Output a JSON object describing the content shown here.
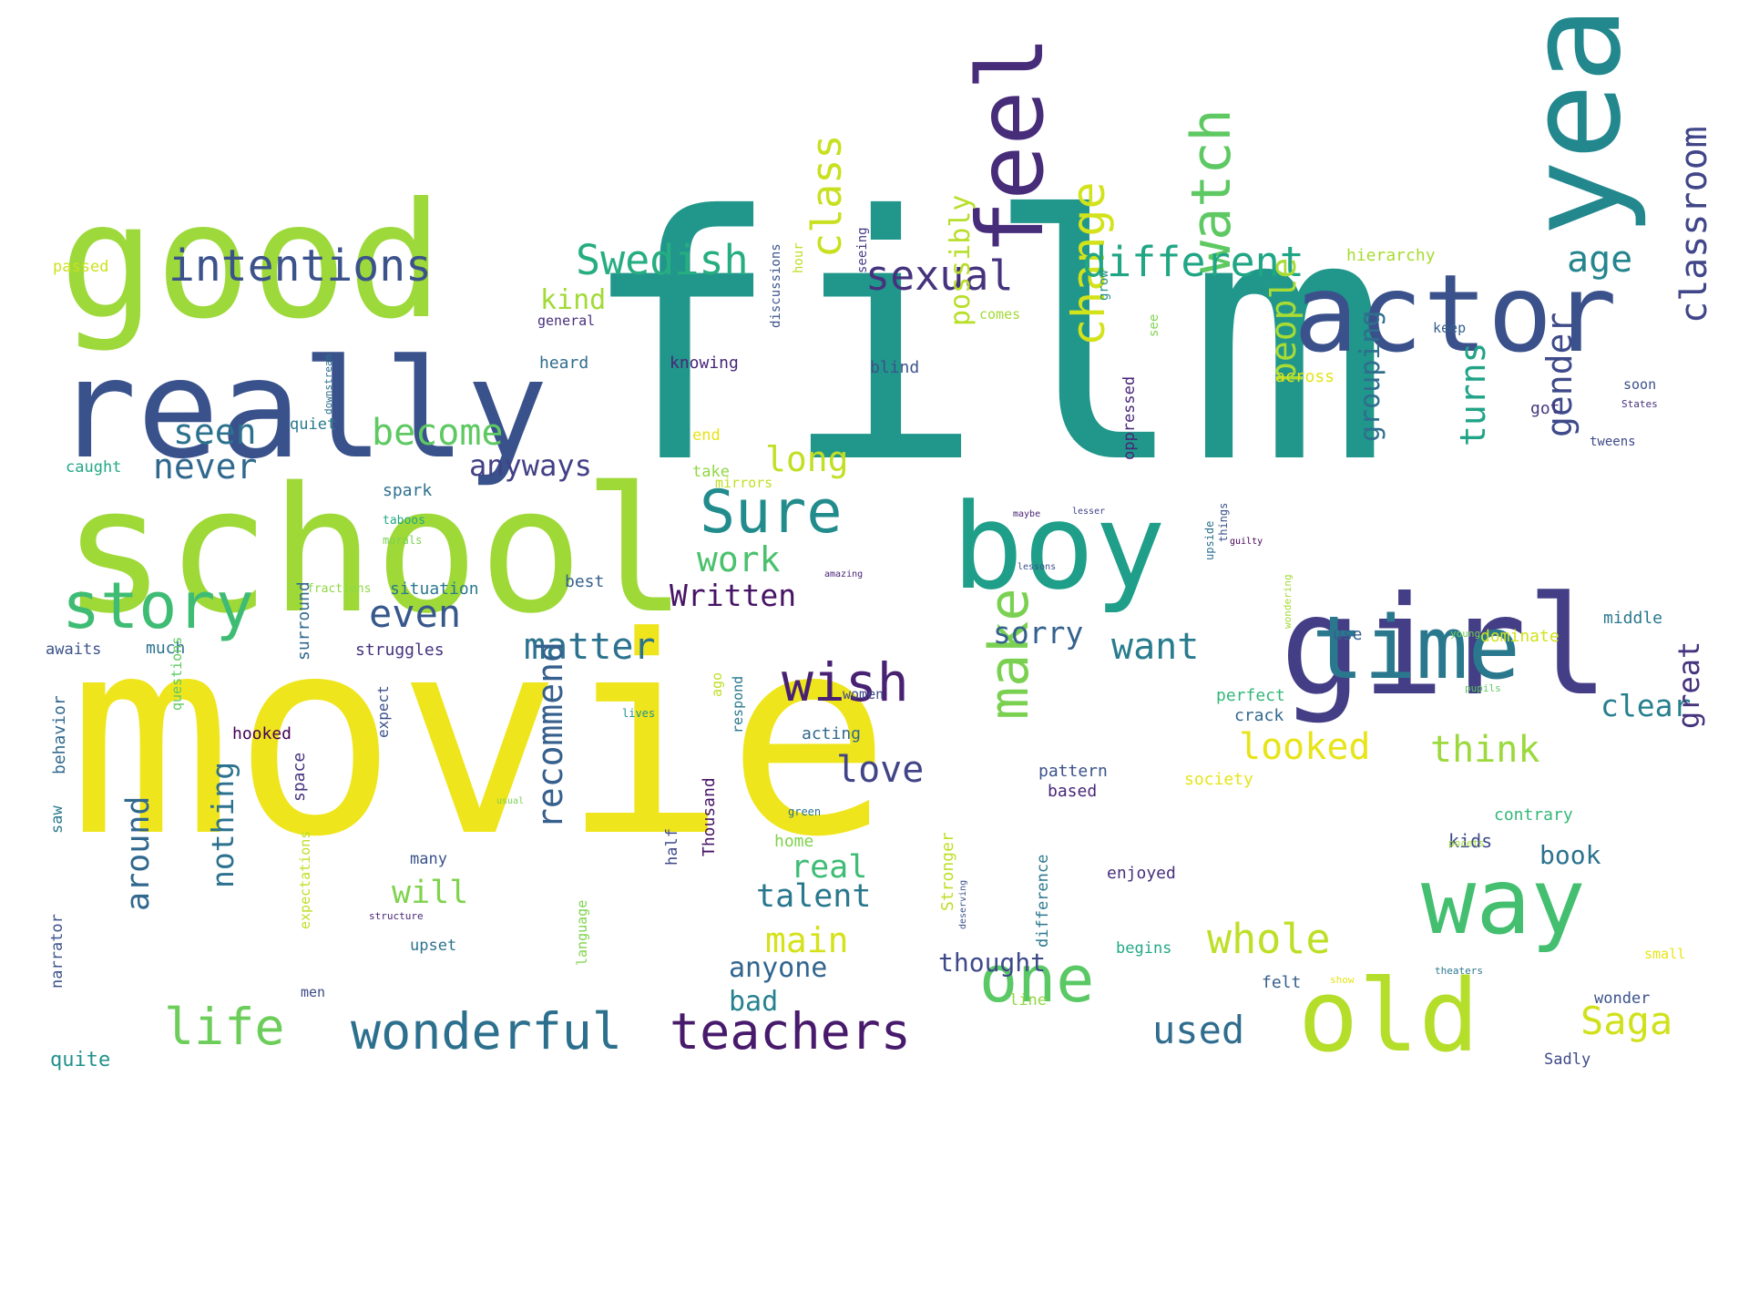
{
  "wordcloud": {
    "words": [
      {
        "text": "film",
        "weight": 100,
        "color": "#21968b",
        "rot": 0
      },
      {
        "text": "movie",
        "weight": 90,
        "color": "#efe51c",
        "rot": 0
      },
      {
        "text": "school",
        "weight": 70,
        "color": "#9fd938",
        "rot": 0
      },
      {
        "text": "good",
        "weight": 62,
        "color": "#9dd93b",
        "rot": 0
      },
      {
        "text": "really",
        "weight": 58,
        "color": "#3a528b",
        "rot": 0
      },
      {
        "text": "boy",
        "weight": 45,
        "color": "#1f9e89",
        "rot": 0
      },
      {
        "text": "girl",
        "weight": 50,
        "color": "#433e85",
        "rot": 0
      },
      {
        "text": "actor",
        "weight": 38,
        "color": "#3b518b",
        "rot": 0
      },
      {
        "text": "year",
        "weight": 42,
        "color": "#23888e",
        "rot": 90
      },
      {
        "text": "time",
        "weight": 36,
        "color": "#2a788e",
        "rot": 0
      },
      {
        "text": "feel",
        "weight": 30,
        "color": "#472c7a",
        "rot": 90
      },
      {
        "text": "way",
        "weight": 36,
        "color": "#44bf70",
        "rot": 0
      },
      {
        "text": "old",
        "weight": 38,
        "color": "#b5de2b",
        "rot": 0
      },
      {
        "text": "story",
        "weight": 22,
        "color": "#3fbc73",
        "rot": 0
      },
      {
        "text": "one",
        "weight": 22,
        "color": "#5ac864",
        "rot": 0
      },
      {
        "text": "wish",
        "weight": 18,
        "color": "#482173",
        "rot": 0
      },
      {
        "text": "make",
        "weight": 20,
        "color": "#7ad151",
        "rot": 90
      },
      {
        "text": "watch",
        "weight": 20,
        "color": "#5ec962",
        "rot": 90
      },
      {
        "text": "Sure",
        "weight": 20,
        "color": "#228c8d",
        "rot": 0
      },
      {
        "text": "teachers",
        "weight": 17,
        "color": "#481a6c",
        "rot": 0
      },
      {
        "text": "life",
        "weight": 16,
        "color": "#6ccd5a",
        "rot": 0
      },
      {
        "text": "wonderful",
        "weight": 17,
        "color": "#2d708e",
        "rot": 0
      },
      {
        "text": "change",
        "weight": 16,
        "color": "#d2e21b",
        "rot": 90
      },
      {
        "text": "intentions",
        "weight": 14,
        "color": "#3b528b",
        "rot": 0
      },
      {
        "text": "Swedish",
        "weight": 12,
        "color": "#26ad81",
        "rot": 0
      },
      {
        "text": "different",
        "weight": 12,
        "color": "#21a685",
        "rot": 0
      },
      {
        "text": "sexual",
        "weight": 12,
        "color": "#46337e",
        "rot": 0
      },
      {
        "text": "age",
        "weight": 10,
        "color": "#25858e",
        "rot": 0
      },
      {
        "text": "class",
        "weight": 12,
        "color": "#c8e020",
        "rot": 90
      },
      {
        "text": "classroom",
        "weight": 10,
        "color": "#404688",
        "rot": 90
      },
      {
        "text": "become",
        "weight": 10,
        "color": "#5ec962",
        "rot": 0
      },
      {
        "text": "seen",
        "weight": 10,
        "color": "#2c728e",
        "rot": 0
      },
      {
        "text": "never",
        "weight": 10,
        "color": "#31688e",
        "rot": 0
      },
      {
        "text": "anyways",
        "weight": 8,
        "color": "#424086",
        "rot": 0
      },
      {
        "text": "long",
        "weight": 10,
        "color": "#c2df23",
        "rot": 0
      },
      {
        "text": "work",
        "weight": 10,
        "color": "#4ac16d",
        "rot": 0
      },
      {
        "text": "even",
        "weight": 11,
        "color": "#38588c",
        "rot": 0
      },
      {
        "text": "matter",
        "weight": 10,
        "color": "#2c728e",
        "rot": 0
      },
      {
        "text": "Written",
        "weight": 8,
        "color": "#471365",
        "rot": 0
      },
      {
        "text": "people",
        "weight": 10,
        "color": "#a8db34",
        "rot": 90
      },
      {
        "text": "turns",
        "weight": 10,
        "color": "#20a386",
        "rot": 90
      },
      {
        "text": "gender",
        "weight": 10,
        "color": "#3e4a89",
        "rot": 90
      },
      {
        "text": "grouping",
        "weight": 8,
        "color": "#2e6e8e",
        "rot": 90
      },
      {
        "text": "possibly",
        "weight": 8,
        "color": "#b8de29",
        "rot": 90
      },
      {
        "text": "sorry",
        "weight": 8,
        "color": "#34618d",
        "rot": 0
      },
      {
        "text": "want",
        "weight": 10,
        "color": "#287c8e",
        "rot": 0
      },
      {
        "text": "kind",
        "weight": 7,
        "color": "#a2da37",
        "rot": 0
      },
      {
        "text": "looked",
        "weight": 9,
        "color": "#e7e419",
        "rot": 0
      },
      {
        "text": "think",
        "weight": 9,
        "color": "#9bd93c",
        "rot": 0
      },
      {
        "text": "clear",
        "weight": 8,
        "color": "#277f8e",
        "rot": 0
      },
      {
        "text": "great",
        "weight": 8,
        "color": "#46337e",
        "rot": 90
      },
      {
        "text": "love",
        "weight": 10,
        "color": "#414487",
        "rot": 0
      },
      {
        "text": "whole",
        "weight": 10,
        "color": "#bddf26",
        "rot": 0
      },
      {
        "text": "recommend",
        "weight": 9,
        "color": "#355f8d",
        "rot": 90
      },
      {
        "text": "around",
        "weight": 8,
        "color": "#31688e",
        "rot": 90
      },
      {
        "text": "nothing",
        "weight": 8,
        "color": "#2c728e",
        "rot": 90
      },
      {
        "text": "will",
        "weight": 8,
        "color": "#7fd34e",
        "rot": 0
      },
      {
        "text": "real",
        "weight": 8,
        "color": "#3dbc74",
        "rot": 0
      },
      {
        "text": "talent",
        "weight": 8,
        "color": "#2a788e",
        "rot": 0
      },
      {
        "text": "main",
        "weight": 9,
        "color": "#d5e21a",
        "rot": 0
      },
      {
        "text": "anyone",
        "weight": 7,
        "color": "#32658e",
        "rot": 0
      },
      {
        "text": "bad",
        "weight": 7,
        "color": "#26818e",
        "rot": 0
      },
      {
        "text": "thought",
        "weight": 7,
        "color": "#3e4989",
        "rot": 0
      },
      {
        "text": "used",
        "weight": 9,
        "color": "#2f6c8e",
        "rot": 0
      },
      {
        "text": "Saga",
        "weight": 9,
        "color": "#d0e11c",
        "rot": 0
      },
      {
        "text": "book",
        "weight": 6,
        "color": "#2c728e",
        "rot": 0
      },
      {
        "text": "kids",
        "weight": 5,
        "color": "#3e4a89",
        "rot": 0
      },
      {
        "text": "passed",
        "weight": 4,
        "color": "#cde11d",
        "rot": 0
      },
      {
        "text": "hierarchy",
        "weight": 4,
        "color": "#a8db34",
        "rot": 0
      },
      {
        "text": "general",
        "weight": 3,
        "color": "#472f7d",
        "rot": 0
      },
      {
        "text": "heard",
        "weight": 4,
        "color": "#2e6d8e",
        "rot": 0
      },
      {
        "text": "knowing",
        "weight": 4,
        "color": "#482677",
        "rot": 0
      },
      {
        "text": "blind",
        "weight": 4,
        "color": "#3b528b",
        "rot": 0
      },
      {
        "text": "comes",
        "weight": 3,
        "color": "#a2da37",
        "rot": 0
      },
      {
        "text": "keep",
        "weight": 3,
        "color": "#355f8d",
        "rot": 0
      },
      {
        "text": "across",
        "weight": 4,
        "color": "#e2e418",
        "rot": 0
      },
      {
        "text": "got",
        "weight": 4,
        "color": "#453781",
        "rot": 0
      },
      {
        "text": "soon",
        "weight": 3,
        "color": "#3b528b",
        "rot": 0
      },
      {
        "text": "States",
        "weight": 2,
        "color": "#46327e",
        "rot": 0
      },
      {
        "text": "tweens",
        "weight": 3,
        "color": "#3e4a89",
        "rot": 0
      },
      {
        "text": "quiet",
        "weight": 3,
        "color": "#2a788e",
        "rot": 0
      },
      {
        "text": "caught",
        "weight": 4,
        "color": "#22a884",
        "rot": 0
      },
      {
        "text": "spark",
        "weight": 4,
        "color": "#2d708e",
        "rot": 0
      },
      {
        "text": "end",
        "weight": 4,
        "color": "#e5e419",
        "rot": 0
      },
      {
        "text": "take",
        "weight": 4,
        "color": "#90d743",
        "rot": 0
      },
      {
        "text": "mirrors",
        "weight": 3,
        "color": "#c2df23",
        "rot": 0
      },
      {
        "text": "taboos",
        "weight": 2,
        "color": "#22a884",
        "rot": 0
      },
      {
        "text": "morals",
        "weight": 2,
        "color": "#7ad151",
        "rot": 0
      },
      {
        "text": "maybe",
        "weight": 2,
        "color": "#482173",
        "rot": 0
      },
      {
        "text": "lesser",
        "weight": 2,
        "color": "#414487",
        "rot": 0
      },
      {
        "text": "lessons",
        "weight": 2,
        "color": "#3b528b",
        "rot": 0
      },
      {
        "text": "amazing",
        "weight": 2,
        "color": "#482475",
        "rot": 0
      },
      {
        "text": "guilty",
        "weight": 2,
        "color": "#440154",
        "rot": 0
      },
      {
        "text": "best",
        "weight": 4,
        "color": "#355f8d",
        "rot": 0
      },
      {
        "text": "situation",
        "weight": 4,
        "color": "#2a788e",
        "rot": 0
      },
      {
        "text": "fractions",
        "weight": 2,
        "color": "#8fd744",
        "rot": 0
      },
      {
        "text": "awaits",
        "weight": 4,
        "color": "#3b528b",
        "rot": 0
      },
      {
        "text": "much",
        "weight": 4,
        "color": "#2c728e",
        "rot": 0
      },
      {
        "text": "struggles",
        "weight": 4,
        "color": "#46337e",
        "rot": 0
      },
      {
        "text": "use",
        "weight": 4,
        "color": "#355f8d",
        "rot": 0
      },
      {
        "text": "young",
        "weight": 2,
        "color": "#73d056",
        "rot": 0
      },
      {
        "text": "dominate",
        "weight": 4,
        "color": "#d2e21b",
        "rot": 0
      },
      {
        "text": "middle",
        "weight": 4,
        "color": "#2a788e",
        "rot": 0
      },
      {
        "text": "perfect",
        "weight": 4,
        "color": "#35b779",
        "rot": 0
      },
      {
        "text": "crack",
        "weight": 4,
        "color": "#31688e",
        "rot": 0
      },
      {
        "text": "lives",
        "weight": 2,
        "color": "#21918c",
        "rot": 0
      },
      {
        "text": "pupils",
        "weight": 2,
        "color": "#5ec962",
        "rot": 0
      },
      {
        "text": "women",
        "weight": 3,
        "color": "#3e4a89",
        "rot": 0
      },
      {
        "text": "acting",
        "weight": 4,
        "color": "#31688e",
        "rot": 0
      },
      {
        "text": "hooked",
        "weight": 4,
        "color": "#440154",
        "rot": 0
      },
      {
        "text": "pattern",
        "weight": 4,
        "color": "#3b528b",
        "rot": 0
      },
      {
        "text": "based",
        "weight": 4,
        "color": "#482677",
        "rot": 0
      },
      {
        "text": "society",
        "weight": 4,
        "color": "#e5e419",
        "rot": 0
      },
      {
        "text": "contrary",
        "weight": 4,
        "color": "#35b779",
        "rot": 0
      },
      {
        "text": "usual",
        "weight": 2,
        "color": "#7ad151",
        "rot": 0
      },
      {
        "text": "green",
        "weight": 2,
        "color": "#2c728e",
        "rot": 0
      },
      {
        "text": "home",
        "weight": 4,
        "color": "#7fd34e",
        "rot": 0
      },
      {
        "text": "many",
        "weight": 4,
        "color": "#3b528b",
        "rot": 0
      },
      {
        "text": "enjoyed",
        "weight": 4,
        "color": "#472f7d",
        "rot": 0
      },
      {
        "text": "pocets",
        "weight": 2,
        "color": "#a5db36",
        "rot": 0
      },
      {
        "text": "structure",
        "weight": 2,
        "color": "#482677",
        "rot": 0
      },
      {
        "text": "upset",
        "weight": 4,
        "color": "#2c728e",
        "rot": 0
      },
      {
        "text": "begins",
        "weight": 4,
        "color": "#22a884",
        "rot": 0
      },
      {
        "text": "small",
        "weight": 3,
        "color": "#e7e419",
        "rot": 0
      },
      {
        "text": "men",
        "weight": 3,
        "color": "#3e4a89",
        "rot": 0
      },
      {
        "text": "felt",
        "weight": 4,
        "color": "#355f8d",
        "rot": 0
      },
      {
        "text": "show",
        "weight": 2,
        "color": "#e5e419",
        "rot": 0
      },
      {
        "text": "theaters",
        "weight": 2,
        "color": "#2a788e",
        "rot": 0
      },
      {
        "text": "wonder",
        "weight": 4,
        "color": "#3b528b",
        "rot": 0
      },
      {
        "text": "line",
        "weight": 4,
        "color": "#90d743",
        "rot": 0
      },
      {
        "text": "quite",
        "weight": 5,
        "color": "#21918c",
        "rot": 0
      },
      {
        "text": "Sadly",
        "weight": 4,
        "color": "#3e4a89",
        "rot": 0
      },
      {
        "text": "discussions",
        "weight": 3,
        "color": "#3b528b",
        "rot": 90
      },
      {
        "text": "seeing",
        "weight": 3,
        "color": "#443983",
        "rot": 90
      },
      {
        "text": "hour",
        "weight": 3,
        "color": "#bddf26",
        "rot": 90
      },
      {
        "text": "grow",
        "weight": 3,
        "color": "#21918c",
        "rot": 90
      },
      {
        "text": "see",
        "weight": 3,
        "color": "#7fd34e",
        "rot": 90
      },
      {
        "text": "oppressed",
        "weight": 3,
        "color": "#482677",
        "rot": 90
      },
      {
        "text": "things",
        "weight": 2,
        "color": "#3b528b",
        "rot": 90
      },
      {
        "text": "upside",
        "weight": 2,
        "color": "#2c728e",
        "rot": 90
      },
      {
        "text": "wondering",
        "weight": 2,
        "color": "#a2da37",
        "rot": 90
      },
      {
        "text": "downstream",
        "weight": 2,
        "color": "#2c728e",
        "rot": 90
      },
      {
        "text": "surround",
        "weight": 4,
        "color": "#31688e",
        "rot": 90
      },
      {
        "text": "questions",
        "weight": 3,
        "color": "#5ec962",
        "rot": 90
      },
      {
        "text": "behavior",
        "weight": 4,
        "color": "#31688e",
        "rot": 90
      },
      {
        "text": "saw",
        "weight": 4,
        "color": "#2a788e",
        "rot": 90
      },
      {
        "text": "narrator",
        "weight": 4,
        "color": "#3b528b",
        "rot": 90
      },
      {
        "text": "expect",
        "weight": 4,
        "color": "#3b528b",
        "rot": 90
      },
      {
        "text": "space",
        "weight": 4,
        "color": "#46337e",
        "rot": 90
      },
      {
        "text": "expectations",
        "weight": 3,
        "color": "#bddf26",
        "rot": 90
      },
      {
        "text": "language",
        "weight": 3,
        "color": "#7fd34e",
        "rot": 90
      },
      {
        "text": "respond",
        "weight": 3,
        "color": "#2a788e",
        "rot": 90
      },
      {
        "text": "Thousand",
        "weight": 4,
        "color": "#471365",
        "rot": 90
      },
      {
        "text": "ago",
        "weight": 3,
        "color": "#bddf26",
        "rot": 90
      },
      {
        "text": "half",
        "weight": 4,
        "color": "#3e4a89",
        "rot": 90
      },
      {
        "text": "Stronger",
        "weight": 4,
        "color": "#bddf26",
        "rot": 90
      },
      {
        "text": "deserving",
        "weight": 2,
        "color": "#3b528b",
        "rot": 90
      },
      {
        "text": "difference",
        "weight": 4,
        "color": "#2a788e",
        "rot": 90
      }
    ]
  }
}
